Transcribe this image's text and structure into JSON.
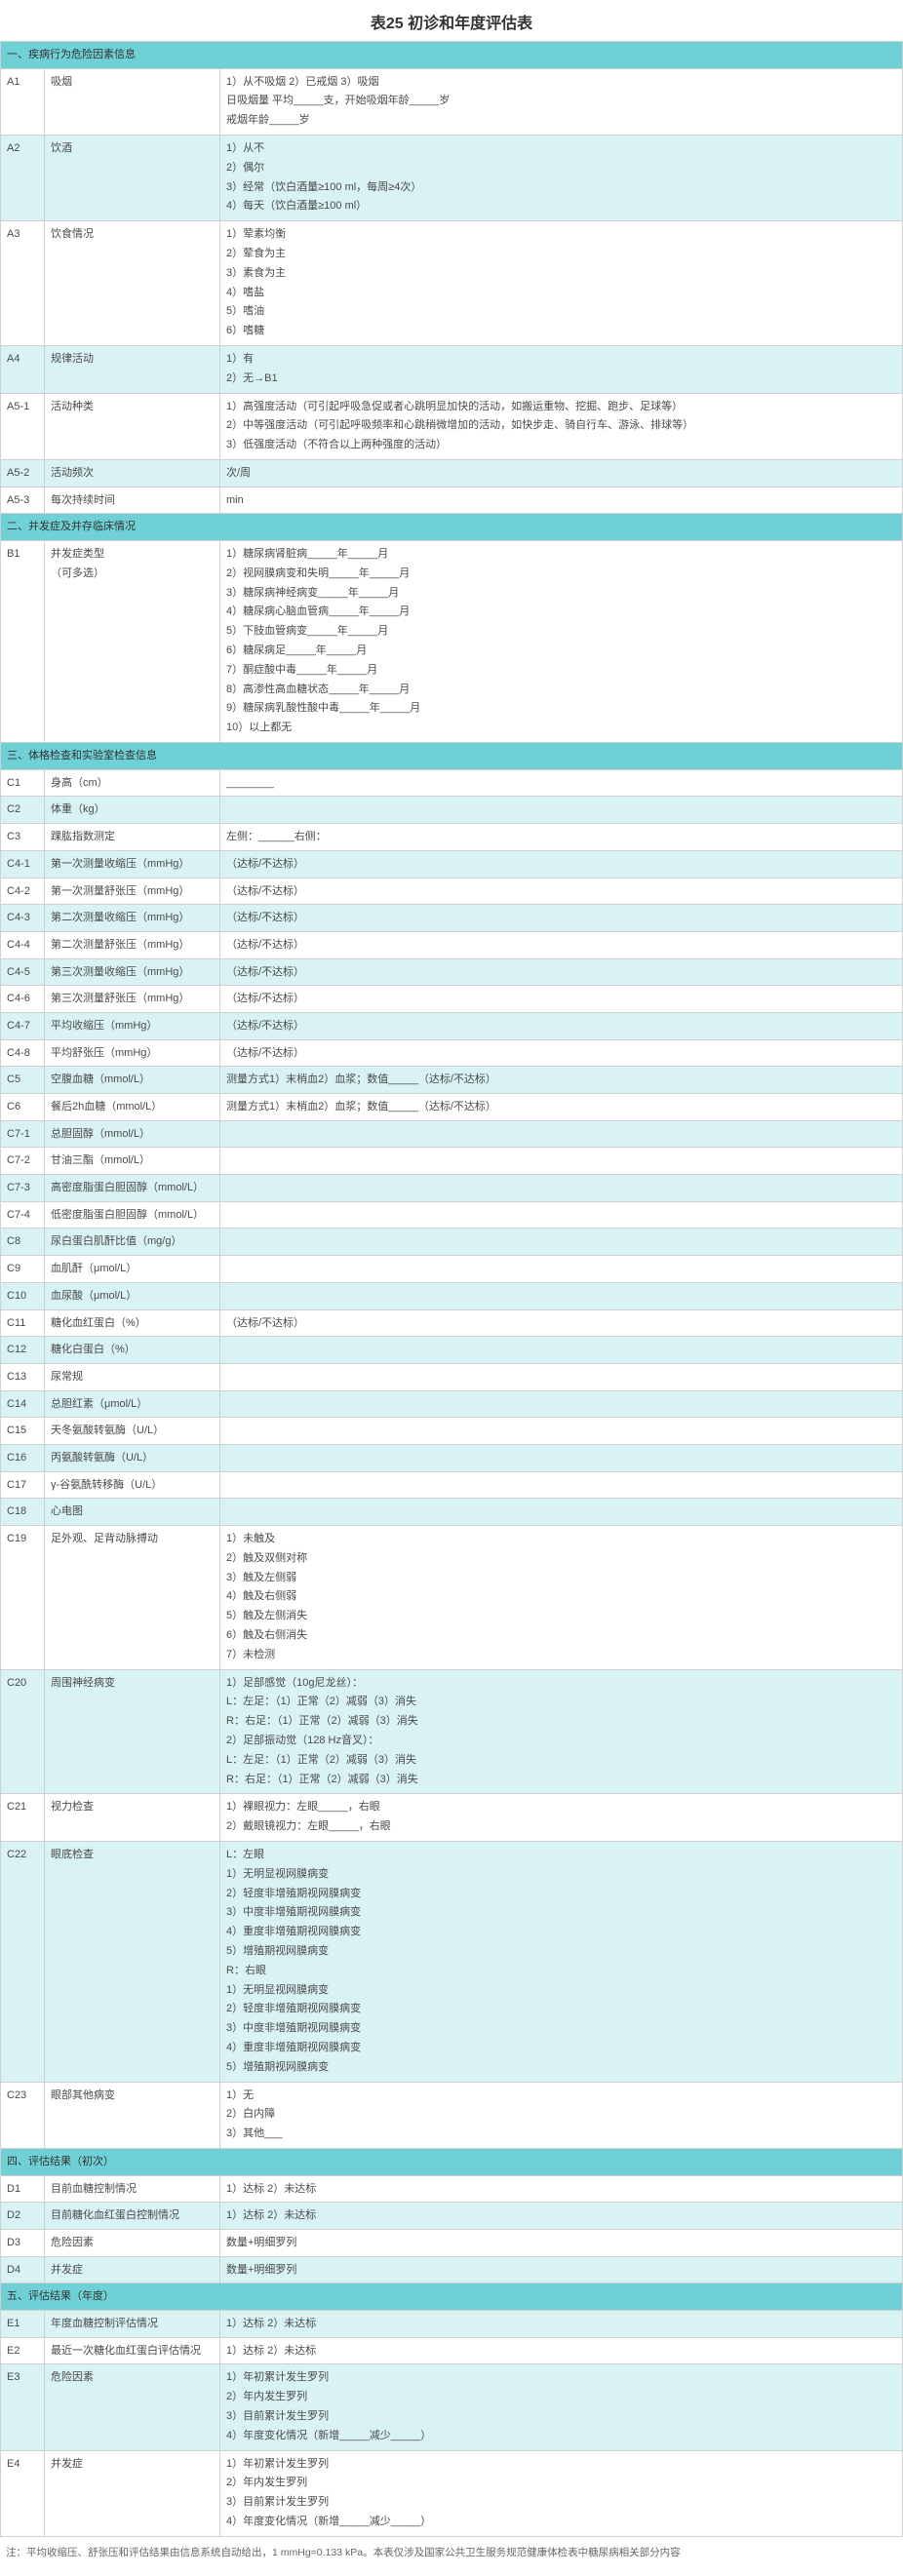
{
  "title": "表25 初诊和年度评估表",
  "section1": {
    "header": "一、疾病行为危险因素信息"
  },
  "A1": {
    "code": "A1",
    "label": "吸烟",
    "l1": "1）从不吸烟 2）已戒烟 3）吸烟",
    "l2": "日吸烟量 平均_____支，开始吸烟年龄_____岁",
    "l3": "戒烟年龄_____岁"
  },
  "A2": {
    "code": "A2",
    "label": "饮酒",
    "l1": "1）从不",
    "l2": "2）偶尔",
    "l3": "3）经常（饮白酒量≥100 ml，每周≥4次）",
    "l4": "4）每天（饮白酒量≥100 ml）"
  },
  "A3": {
    "code": "A3",
    "label": "饮食情况",
    "l1": "1）荤素均衡",
    "l2": "2）荤食为主",
    "l3": "3）素食为主",
    "l4": "4）嗜盐",
    "l5": "5）嗜油",
    "l6": "6）嗜糖"
  },
  "A4": {
    "code": "A4",
    "label": "规律活动",
    "l1": "1）有",
    "l2": "2）无→B1"
  },
  "A5_1": {
    "code": "A5-1",
    "label": "活动种类",
    "l1": "1）高强度活动（可引起呼吸急促或者心跳明显加快的活动，如搬运重物、挖掘、跑步、足球等）",
    "l2": "2）中等强度活动（可引起呼吸频率和心跳稍微增加的活动，如快步走、骑自行车、游泳、排球等）",
    "l3": "3）低强度活动（不符合以上两种强度的活动）"
  },
  "A5_2": {
    "code": "A5-2",
    "label": "活动频次",
    "val": "次/周"
  },
  "A5_3": {
    "code": "A5-3",
    "label": "每次持续时间",
    "val": "min"
  },
  "section2": {
    "header": "二、并发症及并存临床情况"
  },
  "B1": {
    "code": "B1",
    "label1": "并发症类型",
    "label2": "（可多选）",
    "l1": "1）糖尿病肾脏病_____年_____月",
    "l2": "2）视网膜病变和失明_____年_____月",
    "l3": "3）糖尿病神经病变_____年_____月",
    "l4": "4）糖尿病心脑血管病_____年_____月",
    "l5": "5）下肢血管病变_____年_____月",
    "l6": "6）糖尿病足_____年_____月",
    "l7": "7）酮症酸中毒_____年_____月",
    "l8": "8）高渗性高血糖状态_____年_____月",
    "l9": "9）糖尿病乳酸性酸中毒_____年_____月",
    "l10": "10）以上都无"
  },
  "section3": {
    "header": "三、体格检查和实验室检查信息"
  },
  "C1": {
    "code": "C1",
    "label": "身高（cm）",
    "val": "________"
  },
  "C2": {
    "code": "C2",
    "label": "体重（kg）"
  },
  "C3": {
    "code": "C3",
    "label": "踝肱指数测定",
    "val": "左侧：______右侧："
  },
  "C4_1": {
    "code": "C4-1",
    "label": "第一次测量收缩压（mmHg）",
    "val": "（达标/不达标）"
  },
  "C4_2": {
    "code": "C4-2",
    "label": "第一次测量舒张压（mmHg）",
    "val": "（达标/不达标）"
  },
  "C4_3": {
    "code": "C4-3",
    "label": "第二次测量收缩压（mmHg）",
    "val": "（达标/不达标）"
  },
  "C4_4": {
    "code": "C4-4",
    "label": "第二次测量舒张压（mmHg）",
    "val": "（达标/不达标）"
  },
  "C4_5": {
    "code": "C4-5",
    "label": "第三次测量收缩压（mmHg）",
    "val": "（达标/不达标）"
  },
  "C4_6": {
    "code": "C4-6",
    "label": "第三次测量舒张压（mmHg）",
    "val": "（达标/不达标）"
  },
  "C4_7": {
    "code": "C4-7",
    "label": "平均收缩压（mmHg）",
    "val": "（达标/不达标）"
  },
  "C4_8": {
    "code": "C4-8",
    "label": "平均舒张压（mmHg）",
    "val": "（达标/不达标）"
  },
  "C5": {
    "code": "C5",
    "label": "空腹血糖（mmol/L）",
    "val": "测量方式1）末梢血2）血浆；数值_____（达标/不达标）"
  },
  "C6": {
    "code": "C6",
    "label": "餐后2h血糖（mmol/L）",
    "val": "测量方式1）末梢血2）血浆；数值_____（达标/不达标）"
  },
  "C7_1": {
    "code": "C7-1",
    "label": "总胆固醇（mmol/L）"
  },
  "C7_2": {
    "code": "C7-2",
    "label": "甘油三酯（mmol/L）"
  },
  "C7_3": {
    "code": "C7-3",
    "label": "高密度脂蛋白胆固醇（mmol/L）"
  },
  "C7_4": {
    "code": "C7-4",
    "label": "低密度脂蛋白胆固醇（mmol/L）"
  },
  "C8": {
    "code": "C8",
    "label": "尿白蛋白肌酐比值（mg/g）"
  },
  "C9": {
    "code": "C9",
    "label": "血肌酐（μmol/L）"
  },
  "C10": {
    "code": "C10",
    "label": "血尿酸（μmol/L）"
  },
  "C11": {
    "code": "C11",
    "label": "糖化血红蛋白（%）",
    "val": "（达标/不达标）"
  },
  "C12": {
    "code": "C12",
    "label": "糖化白蛋白（%）"
  },
  "C13": {
    "code": "C13",
    "label": "尿常规"
  },
  "C14": {
    "code": "C14",
    "label": "总胆红素（μmol/L）"
  },
  "C15": {
    "code": "C15",
    "label": "天冬氨酸转氨酶（U/L）"
  },
  "C16": {
    "code": "C16",
    "label": "丙氨酸转氨酶（U/L）"
  },
  "C17": {
    "code": "C17",
    "label": "γ-谷氨酰转移酶（U/L）"
  },
  "C18": {
    "code": "C18",
    "label": "心电图"
  },
  "C19": {
    "code": "C19",
    "label": "足外观、足背动脉搏动",
    "l1": "1）未触及",
    "l2": "2）触及双侧对称",
    "l3": "3）触及左侧弱",
    "l4": "4）触及右侧弱",
    "l5": "5）触及左侧消失",
    "l6": "6）触及右侧消失",
    "l7": "7）未检测"
  },
  "C20": {
    "code": "C20",
    "label": "周围神经病变",
    "l1": "1）足部感觉（10g尼龙丝）：",
    "l2": "L：左足：（1）正常（2）减弱（3）消失",
    "l3": "R：右足：（1）正常（2）减弱（3）消失",
    "l4": "2）足部振动觉（128 Hz音叉）：",
    "l5": "L：左足：（1）正常（2）减弱（3）消失",
    "l6": "R：右足：（1）正常（2）减弱（3）消失"
  },
  "C21": {
    "code": "C21",
    "label": "视力检查",
    "l1": "1）裸眼视力：左眼_____，右眼",
    "l2": "2）戴眼镜视力：左眼_____，右眼"
  },
  "C22": {
    "code": "C22",
    "label": "眼底检查",
    "l1": "L：左眼",
    "l2": "1）无明显视网膜病变",
    "l3": "2）轻度非增殖期视网膜病变",
    "l4": "3）中度非增殖期视网膜病变",
    "l5": "4）重度非增殖期视网膜病变",
    "l6": "5）增殖期视网膜病变",
    "l7": "R：右眼",
    "l8": "1）无明显视网膜病变",
    "l9": "2）轻度非增殖期视网膜病变",
    "l10": "3）中度非增殖期视网膜病变",
    "l11": "4）重度非增殖期视网膜病变",
    "l12": "5）增殖期视网膜病变"
  },
  "C23": {
    "code": "C23",
    "label": "眼部其他病变",
    "l1": "1）无",
    "l2": "2）白内障",
    "l3": "3）其他___"
  },
  "section4": {
    "header": "四、评估结果（初次）"
  },
  "D1": {
    "code": "D1",
    "label": "目前血糖控制情况",
    "val": "1）达标 2）未达标"
  },
  "D2": {
    "code": "D2",
    "label": "目前糖化血红蛋白控制情况",
    "val": "1）达标 2）未达标"
  },
  "D3": {
    "code": "D3",
    "label": "危险因素",
    "val": "数量+明细罗列"
  },
  "D4": {
    "code": "D4",
    "label": "并发症",
    "val": "数量+明细罗列"
  },
  "section5": {
    "header": "五、评估结果（年度）"
  },
  "E1": {
    "code": "E1",
    "label": "年度血糖控制评估情况",
    "val": "1）达标 2）未达标"
  },
  "E2": {
    "code": "E2",
    "label": "最近一次糖化血红蛋白评估情况",
    "val": "1）达标 2）未达标"
  },
  "E3": {
    "code": "E3",
    "label": "危险因素",
    "l1": "1）年初累计发生罗列",
    "l2": "2）年内发生罗列",
    "l3": "3）目前累计发生罗列",
    "l4": "4）年度变化情况（新增_____减少_____）"
  },
  "E4": {
    "code": "E4",
    "label": "并发症",
    "l1": "1）年初累计发生罗列",
    "l2": "2）年内发生罗列",
    "l3": "3）目前累计发生罗列",
    "l4": "4）年度变化情况（新增_____减少_____）"
  },
  "footnote": "注：平均收缩压、舒张压和评估结果由信息系统自动给出，1 mmHg=0.133 kPa。本表仅涉及国家公共卫生服务规范健康体检表中糖尿病相关部分内容"
}
